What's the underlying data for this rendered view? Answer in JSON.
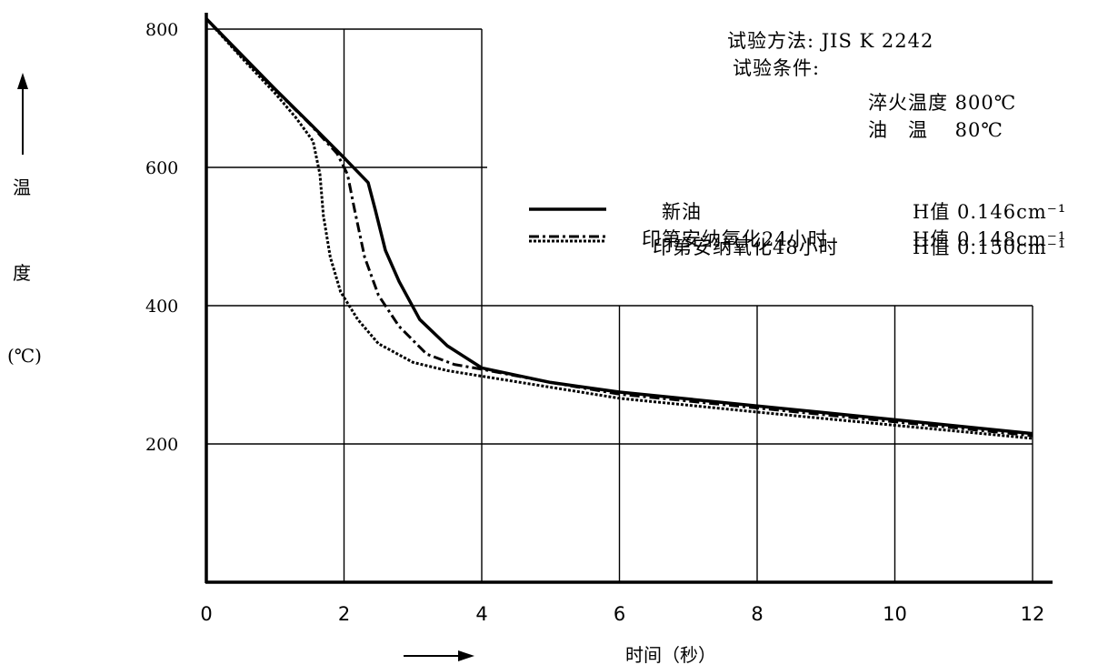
{
  "chart_data": {
    "type": "line",
    "xlabel": "时间（秒）",
    "ylabel_lines": [
      "温",
      "度",
      "(℃)"
    ],
    "xlim": [
      0,
      12
    ],
    "ylim": [
      0,
      800
    ],
    "x_ticks": [
      "0",
      "2",
      "4",
      "6",
      "8",
      "10",
      "12"
    ],
    "y_ticks": [
      "200",
      "400",
      "600",
      "800"
    ],
    "grid": true,
    "legend_position": "top-right",
    "info": {
      "method": "试验方法: JIS K 2242",
      "conditions": "试验条件:",
      "quench_temp": "淬火温度 800℃",
      "oil_temp": "油　温　 80℃"
    },
    "series": [
      {
        "name": "新油",
        "h_value": "H值 0.146cm⁻¹",
        "style": "solid",
        "points": [
          [
            0,
            815
          ],
          [
            0.5,
            764
          ],
          [
            1,
            713
          ],
          [
            1.5,
            664
          ],
          [
            2,
            614
          ],
          [
            2.35,
            578
          ],
          [
            2.45,
            540
          ],
          [
            2.6,
            480
          ],
          [
            2.8,
            435
          ],
          [
            3.1,
            380
          ],
          [
            3.5,
            342
          ],
          [
            4,
            310
          ],
          [
            5,
            289
          ],
          [
            6,
            275
          ],
          [
            8,
            255
          ],
          [
            10,
            235
          ],
          [
            12,
            215
          ]
        ]
      },
      {
        "name": "印第安纳氧化24小时",
        "h_value": "H值 0.148cm⁻¹",
        "style": "dashdot",
        "points": [
          [
            0,
            815
          ],
          [
            0.5,
            762
          ],
          [
            1,
            712
          ],
          [
            1.5,
            663
          ],
          [
            1.9,
            620
          ],
          [
            2.05,
            590
          ],
          [
            2.15,
            540
          ],
          [
            2.3,
            470
          ],
          [
            2.5,
            415
          ],
          [
            2.8,
            370
          ],
          [
            3.2,
            330
          ],
          [
            3.6,
            315
          ],
          [
            4,
            308
          ],
          [
            5,
            289
          ],
          [
            6,
            272
          ],
          [
            8,
            252
          ],
          [
            10,
            232
          ],
          [
            12,
            212
          ]
        ]
      },
      {
        "name": "印第安纳氧化48小时",
        "h_value": "H值 0.150cm⁻¹",
        "style": "dotted",
        "points": [
          [
            0,
            815
          ],
          [
            0.5,
            760
          ],
          [
            1,
            707
          ],
          [
            1.3,
            672
          ],
          [
            1.55,
            638
          ],
          [
            1.65,
            590
          ],
          [
            1.7,
            530
          ],
          [
            1.8,
            470
          ],
          [
            1.95,
            420
          ],
          [
            2.2,
            380
          ],
          [
            2.5,
            345
          ],
          [
            3,
            318
          ],
          [
            3.5,
            306
          ],
          [
            4,
            298
          ],
          [
            5,
            282
          ],
          [
            6,
            266
          ],
          [
            8,
            246
          ],
          [
            10,
            227
          ],
          [
            12,
            208
          ]
        ]
      }
    ]
  }
}
